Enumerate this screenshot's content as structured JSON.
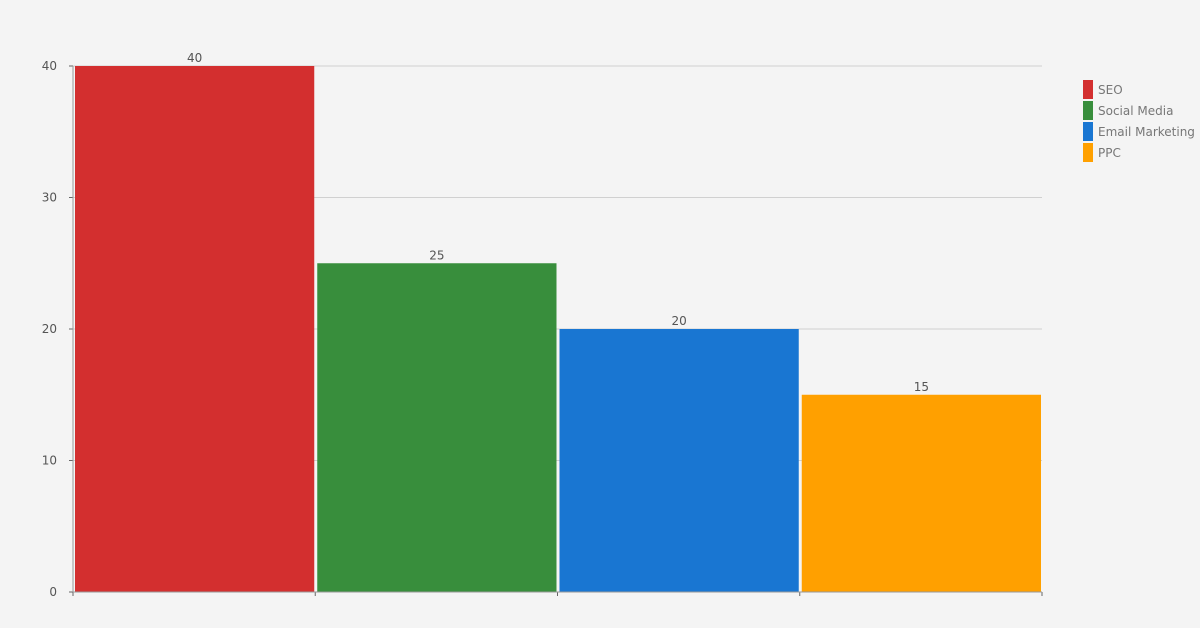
{
  "chart_data": {
    "type": "bar",
    "categories": [
      "SEO",
      "Social Media",
      "Email Marketing",
      "PPC"
    ],
    "values": [
      40,
      25,
      20,
      15
    ],
    "colors": [
      "#d32f2f",
      "#388e3c",
      "#1976d2",
      "#ffa000"
    ],
    "ylim": [
      0,
      40
    ],
    "yticks": [
      0,
      10,
      20,
      30,
      40
    ],
    "grid": true,
    "legend": "right",
    "data_labels": true
  }
}
